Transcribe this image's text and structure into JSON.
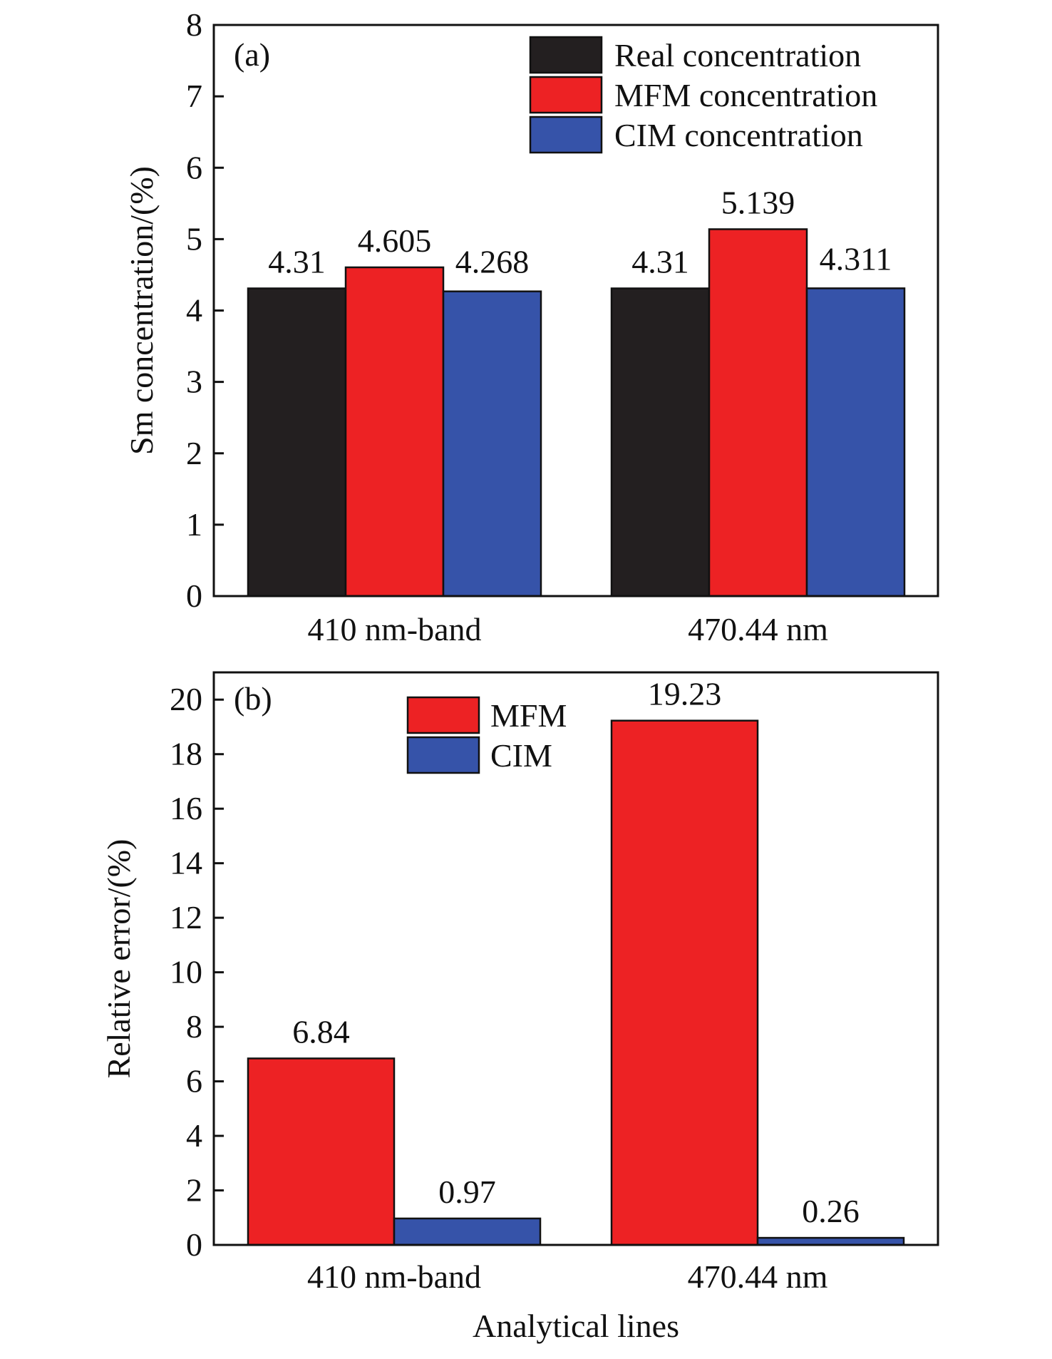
{
  "chart_data": [
    {
      "type": "bar",
      "panel_label": "(a)",
      "categories": [
        "410 nm-band",
        "470.44 nm"
      ],
      "series": [
        {
          "name": "Real concentration",
          "color": "#231f20",
          "values": [
            4.31,
            4.31
          ],
          "labels": [
            "4.31",
            "4.31"
          ]
        },
        {
          "name": "MFM concentration",
          "color": "#ed2224",
          "values": [
            4.605,
            5.139
          ],
          "labels": [
            "4.605",
            "5.139"
          ]
        },
        {
          "name": "CIM concentration",
          "color": "#3653a9",
          "values": [
            4.268,
            4.311
          ],
          "labels": [
            "4.268",
            "4.311"
          ]
        }
      ],
      "ylabel": "Sm concentration/(%)",
      "xlabel": "",
      "ylim": [
        0,
        8
      ],
      "yticks": [
        "0",
        "1",
        "2",
        "3",
        "4",
        "5",
        "6",
        "7",
        "8"
      ],
      "grid": false,
      "legend_position": "top-right"
    },
    {
      "type": "bar",
      "panel_label": "(b)",
      "categories": [
        "410 nm-band",
        "470.44 nm"
      ],
      "series": [
        {
          "name": "MFM",
          "color": "#ed2224",
          "values": [
            6.84,
            19.23
          ],
          "labels": [
            "6.84",
            "19.23"
          ]
        },
        {
          "name": "CIM",
          "color": "#3653a9",
          "values": [
            0.97,
            0.26
          ],
          "labels": [
            "0.97",
            "0.26"
          ]
        }
      ],
      "ylabel": "Relative error/(%)",
      "xlabel": "Analytical lines",
      "ylim": [
        0,
        21
      ],
      "yticks": [
        "0",
        "2",
        "4",
        "6",
        "8",
        "10",
        "12",
        "14",
        "16",
        "18",
        "20"
      ],
      "grid": false,
      "legend_position": "top-center"
    }
  ]
}
